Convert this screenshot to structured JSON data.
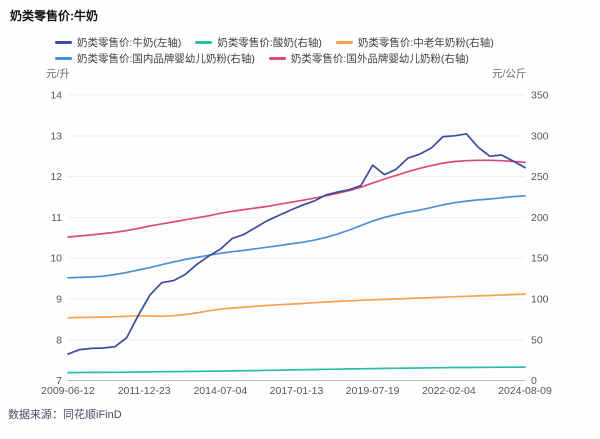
{
  "header": {
    "title": "奶类零售价:牛奶"
  },
  "footer": {
    "source": "数据来源：同花顺iFinD"
  },
  "chart_data": {
    "type": "line",
    "title": "奶类零售价:牛奶",
    "grid": true,
    "legend_position": "top",
    "x_axis": {
      "tick_labels": [
        "2009-06-12",
        "2011-12-23",
        "2014-07-04",
        "2017-01-13",
        "2019-07-19",
        "2022-02-04",
        "2024-08-09"
      ]
    },
    "left_axis": {
      "unit": "元/升",
      "min": 7,
      "max": 14,
      "ticks": [
        "14",
        "13",
        "12",
        "11",
        "10",
        "9",
        "8",
        "7"
      ]
    },
    "right_axis": {
      "unit": "元/公斤",
      "min": 0,
      "max": 350,
      "ticks": [
        "350",
        "300",
        "250",
        "200",
        "150",
        "100",
        "50",
        "0"
      ]
    },
    "series": [
      {
        "id": "milk",
        "label": "奶类零售价:牛奶(左轴)",
        "axis": "left",
        "color": "#3d4b9c",
        "values": [
          7.65,
          7.76,
          7.79,
          7.8,
          7.83,
          8.05,
          8.6,
          9.1,
          9.4,
          9.45,
          9.6,
          9.85,
          10.05,
          10.22,
          10.48,
          10.58,
          10.75,
          10.92,
          11.05,
          11.18,
          11.3,
          11.4,
          11.55,
          11.62,
          11.68,
          11.78,
          12.28,
          12.05,
          12.18,
          12.45,
          12.55,
          12.7,
          12.98,
          13.0,
          13.05,
          12.72,
          12.5,
          12.53,
          12.38,
          12.22
        ]
      },
      {
        "id": "yogurt",
        "label": "奶类零售价:酸奶(右轴)",
        "axis": "right",
        "color": "#28bfa5",
        "values": [
          9.8,
          9.9,
          10.0,
          10.1,
          10.2,
          10.3,
          10.5,
          10.7,
          10.9,
          11.0,
          11.1,
          11.3,
          11.5,
          11.7,
          11.9,
          12.1,
          12.3,
          12.6,
          12.8,
          13.1,
          13.3,
          13.6,
          13.8,
          14.0,
          14.3,
          14.5,
          14.7,
          14.9,
          15.1,
          15.3,
          15.5,
          15.7,
          15.8,
          16.0,
          16.1,
          16.2,
          16.3,
          16.4,
          16.45,
          16.5
        ]
      },
      {
        "id": "senior-milk-powder",
        "label": "奶类零售价:中老年奶粉(右轴)",
        "axis": "right",
        "color": "#f5a24d",
        "values": [
          77,
          77.3,
          77.6,
          78,
          78.3,
          78.8,
          79.5,
          79.2,
          78.8,
          79.5,
          81,
          83,
          85.5,
          87.5,
          89,
          90,
          91,
          92,
          93,
          93.8,
          94.5,
          95.5,
          96.3,
          97,
          97.8,
          98.4,
          99,
          99.5,
          100,
          100.6,
          101.2,
          101.7,
          102.2,
          102.8,
          103.3,
          103.8,
          104.3,
          104.9,
          105.5,
          106
        ]
      },
      {
        "id": "domestic-infant-formula",
        "label": "奶类零售价:国内品牌婴幼儿奶粉(右轴)",
        "axis": "right",
        "color": "#4a90d8",
        "values": [
          126,
          126.5,
          127,
          128,
          130,
          132.5,
          135.5,
          138.5,
          142,
          145.5,
          148.5,
          151,
          153.5,
          156,
          158,
          159.5,
          161.5,
          163.5,
          165.5,
          167.5,
          169.5,
          172,
          175.5,
          179.5,
          184.5,
          190,
          195.5,
          200,
          203.5,
          206.5,
          209,
          212,
          215.5,
          218,
          220,
          221.5,
          222.5,
          224,
          225.5,
          226.5
        ]
      },
      {
        "id": "foreign-infant-formula",
        "label": "奶类零售价:国外品牌婴幼儿奶粉(右轴)",
        "axis": "right",
        "color": "#de4980",
        "values": [
          176,
          177.2,
          178.6,
          180.2,
          181.8,
          183.8,
          186.5,
          189.5,
          192,
          194.5,
          197,
          199.5,
          202,
          205,
          207.5,
          209.5,
          211.5,
          213.5,
          216,
          218.5,
          221,
          223.5,
          226.5,
          229.5,
          233,
          237,
          242,
          247,
          251.5,
          256,
          260,
          263.5,
          266.5,
          268.5,
          269.5,
          270,
          270,
          269.5,
          268.5,
          267.5
        ]
      }
    ]
  }
}
